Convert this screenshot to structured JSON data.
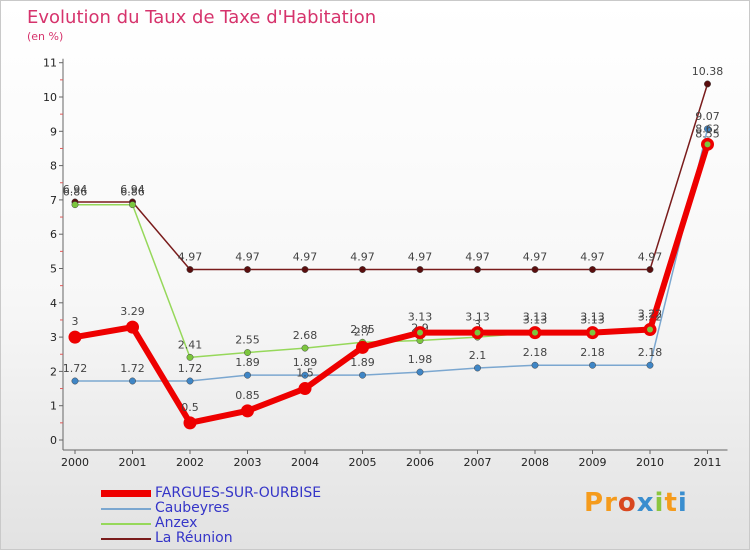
{
  "title": "Evolution du Taux de Taxe d'Habitation",
  "subtitle": "(en %)",
  "logo": {
    "text": "Proxiti",
    "colors": [
      "#f59b1c",
      "#f59b1c",
      "#d9471f",
      "#3a8ecf",
      "#8cc63f",
      "#f59b1c",
      "#3a8ecf"
    ]
  },
  "chart_data": {
    "type": "line",
    "title": "Evolution du Taux de Taxe d'Habitation",
    "ylabel": "(en %)",
    "categories": [
      "2000",
      "2001",
      "2002",
      "2003",
      "2004",
      "2005",
      "2006",
      "2007",
      "2008",
      "2009",
      "2010",
      "2011"
    ],
    "yticks": [
      "0",
      "1",
      "2",
      "3",
      "4",
      "5",
      "6",
      "7",
      "8",
      "9",
      "10",
      "11"
    ],
    "ylim": [
      0,
      11
    ],
    "series": [
      {
        "name": "La Réunion",
        "color": "#7a1c1c",
        "width": 1.5,
        "marker": "#5a0e0e",
        "values": [
          6.94,
          6.94,
          4.97,
          4.97,
          4.97,
          4.97,
          4.97,
          4.97,
          4.97,
          4.97,
          4.97,
          10.38
        ],
        "labels": [
          "6.94",
          "6.94",
          "4.97",
          "4.97",
          "4.97",
          "4.97",
          "4.97",
          "4.97",
          "4.97",
          "4.97",
          "4.97",
          "10.38"
        ]
      },
      {
        "name": "Anzex",
        "color": "#96d85a",
        "width": 1.5,
        "marker": "#7cc63e",
        "values": [
          6.86,
          6.86,
          2.41,
          2.55,
          2.68,
          2.85,
          2.9,
          3.0,
          3.13,
          3.13,
          3.22,
          8.55
        ],
        "labels": [
          "6.86",
          "6.86",
          "2.41",
          "2.55",
          "2.68",
          "2.85",
          "2.9",
          "3",
          "3.13",
          "3.13",
          "3.22",
          "8.55"
        ]
      },
      {
        "name": "Caubeyres",
        "color": "#7ba7d0",
        "width": 1.5,
        "marker": "#3f86c6",
        "values": [
          1.72,
          1.72,
          1.72,
          1.89,
          1.89,
          1.89,
          1.98,
          2.1,
          2.18,
          2.18,
          2.18,
          9.07
        ],
        "labels": [
          "1.72",
          "1.72",
          "1.72",
          "1.89",
          "1.89",
          "1.89",
          "1.98",
          "2.1",
          "2.18",
          "2.18",
          "2.18",
          "9.07"
        ]
      },
      {
        "name": "FARGUES-SUR-OURBISE",
        "color": "#ee0000",
        "width": 6,
        "marker": "#ee0000",
        "values": [
          3.0,
          3.29,
          0.5,
          0.85,
          1.5,
          2.7,
          3.13,
          3.13,
          3.13,
          3.13,
          3.22,
          8.62
        ],
        "labels": [
          "3",
          "3.29",
          "0.5",
          "0.85",
          "1.5",
          "2.7",
          "3.13",
          "3.13",
          "3.13",
          "3.13",
          "3.22",
          "8.62"
        ]
      }
    ],
    "legend": [
      "FARGUES-SUR-OURBISE",
      "Caubeyres",
      "Anzex",
      "La Réunion"
    ]
  }
}
